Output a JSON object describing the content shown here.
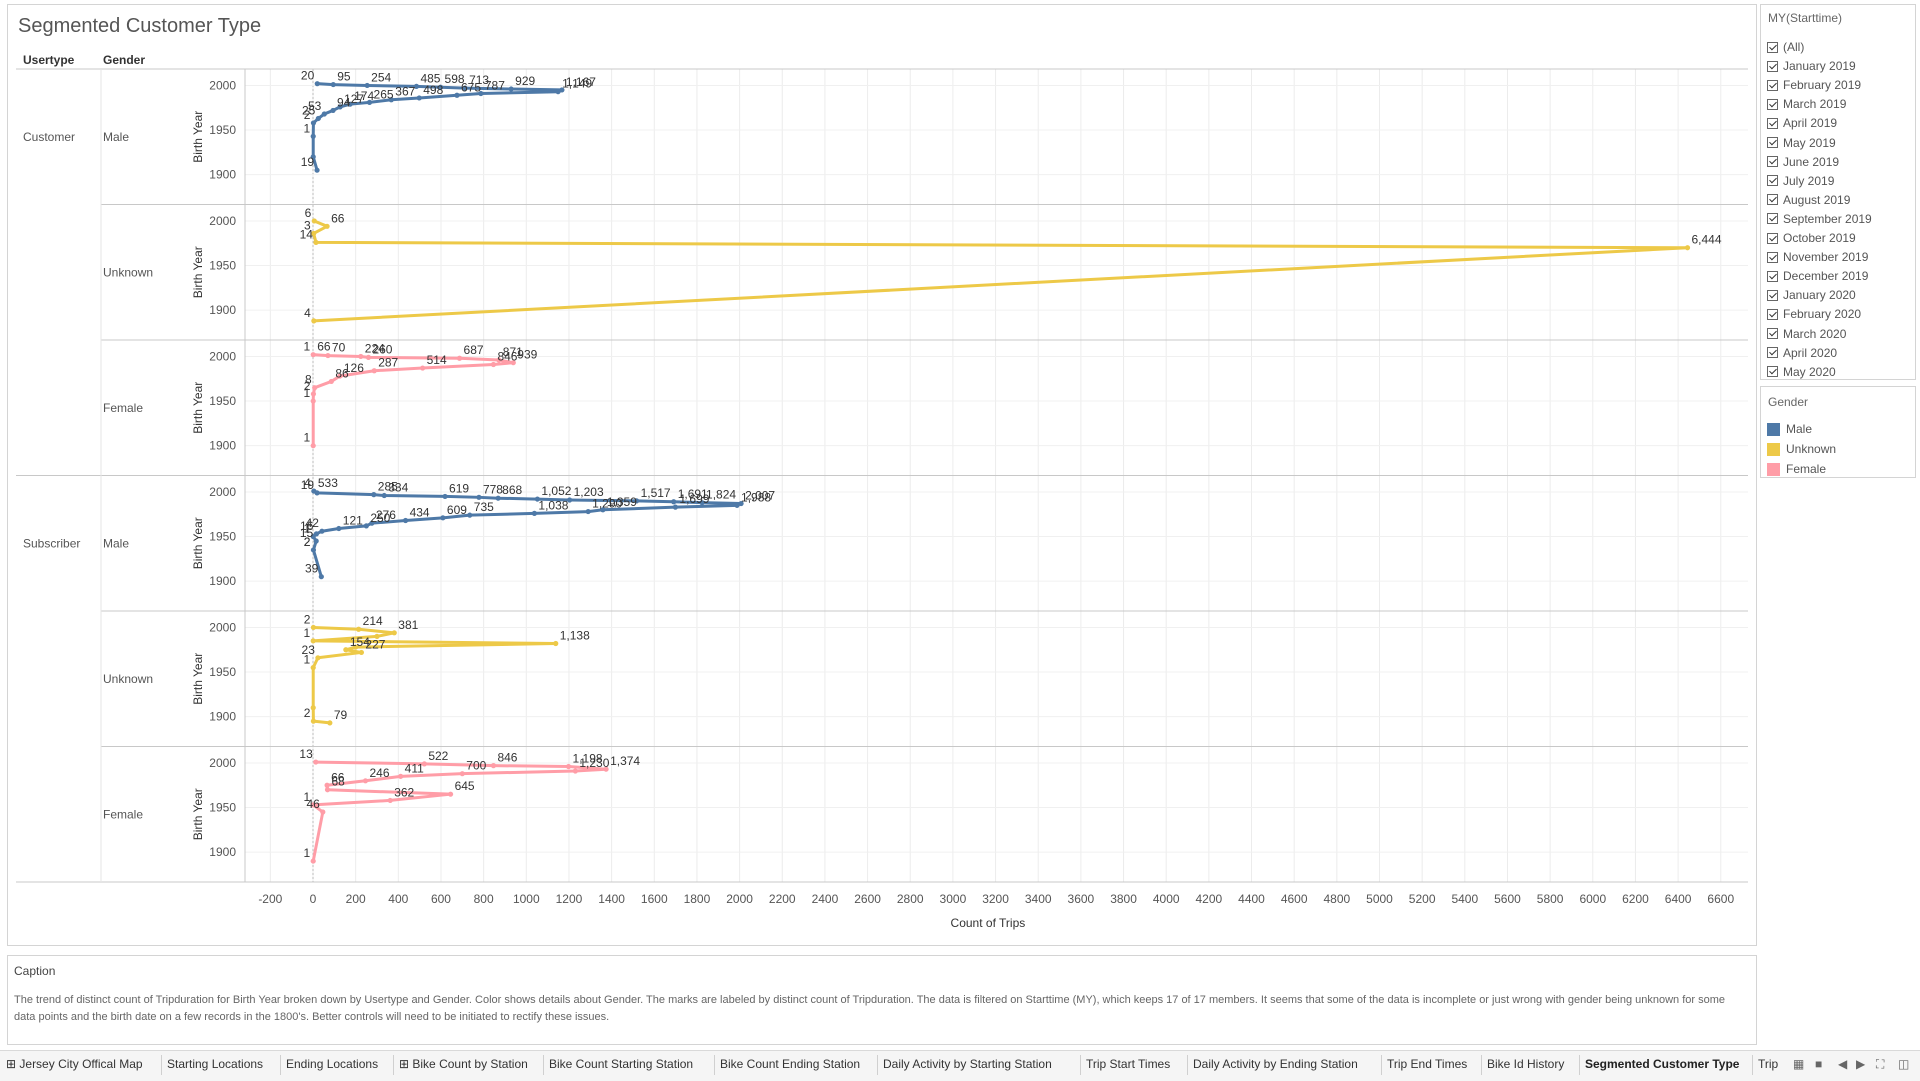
{
  "sheet": {
    "title": "Segmented Customer Type",
    "col_headers": {
      "usertype": "Usertype",
      "gender": "Gender"
    }
  },
  "colors": {
    "Male": "#4e79a7",
    "Unknown": "#edc948",
    "Female": "#ff9da7"
  },
  "chart_data": {
    "type": "line",
    "title": "Segmented Customer Type",
    "xlabel": "Count of Trips",
    "ylabel": "Birth Year",
    "xlim": [
      -200,
      6600
    ],
    "x_ticks": [
      "-200",
      "0",
      "200",
      "400",
      "600",
      "800",
      "1000",
      "1200",
      "1400",
      "1600",
      "1800",
      "2000",
      "2200",
      "2400",
      "2600",
      "2800",
      "3000",
      "3200",
      "3400",
      "3600",
      "3800",
      "4000",
      "4200",
      "4400",
      "4600",
      "4800",
      "5000",
      "5200",
      "5400",
      "5600",
      "5800",
      "6000",
      "6200",
      "6400",
      "6600"
    ],
    "y_ticks": [
      "2000",
      "1950",
      "1900"
    ],
    "grid": true,
    "panels": [
      {
        "usertype": "Customer",
        "gender": "Male",
        "points": [
          [
            20,
            2002
          ],
          [
            95,
            2001
          ],
          [
            254,
            2000
          ],
          [
            485,
            1999
          ],
          [
            598,
            1998
          ],
          [
            713,
            1997
          ],
          [
            929,
            1996
          ],
          [
            1167,
            1995
          ],
          [
            1149,
            1993
          ],
          [
            787,
            1991
          ],
          [
            675,
            1989
          ],
          [
            498,
            1986
          ],
          [
            367,
            1984
          ],
          [
            265,
            1981
          ],
          [
            174,
            1979
          ],
          [
            127,
            1976
          ],
          [
            94,
            1972
          ],
          [
            53,
            1968
          ],
          [
            25,
            1963
          ],
          [
            2,
            1958
          ],
          [
            1,
            1943
          ],
          [
            1,
            1920
          ],
          [
            19,
            1905
          ]
        ],
        "labels": [
          [
            20,
            "20"
          ],
          [
            95,
            "95"
          ],
          [
            254,
            "254"
          ],
          [
            485,
            "485"
          ],
          [
            598,
            "598"
          ],
          [
            713,
            "713"
          ],
          [
            929,
            "929"
          ],
          [
            1167,
            "1,167"
          ],
          [
            1149,
            "1,149"
          ],
          [
            787,
            "787"
          ],
          [
            675,
            "675"
          ],
          [
            498,
            "498"
          ],
          [
            367,
            "367"
          ],
          [
            265,
            "265"
          ],
          [
            174,
            "174"
          ],
          [
            127,
            "127"
          ],
          [
            94,
            "94"
          ],
          [
            53,
            "53"
          ],
          [
            25,
            "25"
          ],
          [
            2,
            "2"
          ],
          [
            1,
            "1"
          ],
          [
            19,
            "19"
          ]
        ]
      },
      {
        "usertype": "",
        "gender": "Unknown",
        "points": [
          [
            6,
            2000
          ],
          [
            66,
            1994
          ],
          [
            3,
            1986
          ],
          [
            14,
            1976
          ],
          [
            6444,
            1970
          ],
          [
            4,
            1888
          ]
        ],
        "labels": [
          [
            6,
            "6"
          ],
          [
            66,
            "66"
          ],
          [
            3,
            "3"
          ],
          [
            14,
            "14"
          ],
          [
            6444,
            "6,444"
          ],
          [
            4,
            "4"
          ]
        ]
      },
      {
        "usertype": "",
        "gender": "Female",
        "points": [
          [
            1,
            2002
          ],
          [
            70,
            2001
          ],
          [
            224,
            2000
          ],
          [
            260,
            1999
          ],
          [
            687,
            1998
          ],
          [
            871,
            1996
          ],
          [
            939,
            1993
          ],
          [
            846,
            1991
          ],
          [
            514,
            1987
          ],
          [
            287,
            1984
          ],
          [
            126,
            1978
          ],
          [
            86,
            1972
          ],
          [
            8,
            1965
          ],
          [
            2,
            1958
          ],
          [
            1,
            1950
          ],
          [
            1,
            1900
          ]
        ],
        "labels": [
          [
            1,
            "1"
          ],
          [
            70,
            "70"
          ],
          [
            224,
            "224"
          ],
          [
            260,
            "260"
          ],
          [
            687,
            "687"
          ],
          [
            871,
            "871"
          ],
          [
            939,
            "939"
          ],
          [
            846,
            "846"
          ],
          [
            514,
            "514"
          ],
          [
            287,
            "287"
          ],
          [
            126,
            "126"
          ],
          [
            86,
            "86"
          ],
          [
            8,
            "8"
          ],
          [
            66,
            "66"
          ],
          [
            2,
            "2"
          ],
          [
            1,
            "1"
          ],
          [
            1,
            "1"
          ]
        ]
      },
      {
        "usertype": "Subscriber",
        "gender": "Male",
        "points": [
          [
            4,
            2001
          ],
          [
            19,
            1999
          ],
          [
            285,
            1997
          ],
          [
            334,
            1996
          ],
          [
            619,
            1995
          ],
          [
            778,
            1994
          ],
          [
            868,
            1993
          ],
          [
            1052,
            1992
          ],
          [
            1203,
            1991
          ],
          [
            1517,
            1990
          ],
          [
            1691,
            1989
          ],
          [
            1824,
            1988
          ],
          [
            2007,
            1987
          ],
          [
            1988,
            1985
          ],
          [
            1699,
            1983
          ],
          [
            1359,
            1980
          ],
          [
            1290,
            1978
          ],
          [
            1038,
            1976
          ],
          [
            735,
            1974
          ],
          [
            609,
            1971
          ],
          [
            434,
            1968
          ],
          [
            276,
            1965
          ],
          [
            250,
            1962
          ],
          [
            121,
            1959
          ],
          [
            42,
            1956
          ],
          [
            16,
            1953
          ],
          [
            1,
            1950
          ],
          [
            15,
            1945
          ],
          [
            2,
            1935
          ],
          [
            39,
            1905
          ]
        ],
        "labels": [
          [
            4,
            "4"
          ],
          [
            2,
            "2"
          ],
          [
            19,
            "19"
          ],
          [
            334,
            "334"
          ],
          [
            285,
            "285"
          ],
          [
            1203,
            "1,203"
          ],
          [
            619,
            "619"
          ],
          [
            778,
            "778"
          ],
          [
            868,
            "868"
          ],
          [
            1052,
            "1,052"
          ],
          [
            1517,
            "1,517"
          ],
          [
            1691,
            "1,691"
          ],
          [
            1824,
            "1,824"
          ],
          [
            2007,
            "2,007"
          ],
          [
            1988,
            "1,988"
          ],
          [
            1699,
            "1,699"
          ],
          [
            1359,
            "1,359"
          ],
          [
            533,
            "533"
          ],
          [
            250,
            "250"
          ],
          [
            16,
            "16"
          ],
          [
            42,
            "42"
          ],
          [
            1038,
            "1,038"
          ],
          [
            1290,
            "1,290"
          ],
          [
            121,
            "121"
          ],
          [
            276,
            "276"
          ],
          [
            434,
            "434"
          ],
          [
            609,
            "609"
          ],
          [
            735,
            "735"
          ],
          [
            1,
            "1"
          ],
          [
            15,
            "15"
          ],
          [
            2,
            "2"
          ],
          [
            39,
            "39"
          ]
        ]
      },
      {
        "usertype": "",
        "gender": "Unknown",
        "points": [
          [
            2,
            2000
          ],
          [
            214,
            1998
          ],
          [
            381,
            1994
          ],
          [
            300,
            1990
          ],
          [
            1,
            1985
          ],
          [
            1138,
            1982
          ],
          [
            200,
            1978
          ],
          [
            154,
            1975
          ],
          [
            227,
            1972
          ],
          [
            23,
            1966
          ],
          [
            1,
            1955
          ],
          [
            1,
            1910
          ],
          [
            2,
            1895
          ],
          [
            79,
            1893
          ]
        ],
        "labels": [
          [
            214,
            "214"
          ],
          [
            2,
            "2"
          ],
          [
            381,
            "381"
          ],
          [
            1,
            "1"
          ],
          [
            1138,
            "1,138"
          ],
          [
            154,
            "154"
          ],
          [
            227,
            "227"
          ],
          [
            23,
            "23"
          ],
          [
            1,
            "1"
          ],
          [
            2,
            "2"
          ],
          [
            79,
            "79"
          ]
        ]
      },
      {
        "usertype": "",
        "gender": "Female",
        "points": [
          [
            13,
            2001
          ],
          [
            522,
            1999
          ],
          [
            846,
            1997
          ],
          [
            1198,
            1996
          ],
          [
            1374,
            1993
          ],
          [
            1230,
            1991
          ],
          [
            700,
            1988
          ],
          [
            411,
            1985
          ],
          [
            246,
            1980
          ],
          [
            66,
            1975
          ],
          [
            68,
            1970
          ],
          [
            645,
            1965
          ],
          [
            362,
            1958
          ],
          [
            1,
            1953
          ],
          [
            46,
            1945
          ],
          [
            1,
            1890
          ]
        ],
        "labels": [
          [
            13,
            "13"
          ],
          [
            522,
            "522"
          ],
          [
            846,
            "846"
          ],
          [
            1198,
            "1,198"
          ],
          [
            1374,
            "1,374"
          ],
          [
            1230,
            "1,230"
          ],
          [
            66,
            "66"
          ],
          [
            246,
            "246"
          ],
          [
            411,
            "411"
          ],
          [
            68,
            "68"
          ],
          [
            700,
            "700"
          ],
          [
            1,
            "1"
          ],
          [
            362,
            "362"
          ],
          [
            645,
            "645"
          ],
          [
            46,
            "46"
          ],
          [
            1,
            "1"
          ]
        ]
      }
    ]
  },
  "filter": {
    "title": "MY(Starttime)",
    "items": [
      "(All)",
      "January 2019",
      "February 2019",
      "March 2019",
      "April 2019",
      "May 2019",
      "June 2019",
      "July 2019",
      "August 2019",
      "September 2019",
      "October 2019",
      "November 2019",
      "December 2019",
      "January 2020",
      "February 2020",
      "March 2020",
      "April 2020",
      "May 2020"
    ]
  },
  "legend": {
    "title": "Gender",
    "items": [
      "Male",
      "Unknown",
      "Female"
    ]
  },
  "caption": {
    "title": "Caption",
    "text": "The trend of distinct count of Tripduration for Birth Year broken down by Usertype and Gender.  Color shows details about Gender.  The marks are labeled by distinct count of Tripduration. The data is filtered on Starttime (MY), which keeps 17 of 17 members. It seems that some of the data is incomplete or just wrong with gender being unknown for some data points and the birth date on a few records in the 1800's. Better controls will need to be initiated to rectify these issues."
  },
  "tabs": [
    {
      "label": "Jersey City Offical Map",
      "icon": "grid-icon"
    },
    {
      "label": "Starting Locations"
    },
    {
      "label": "Ending Locations"
    },
    {
      "label": "Bike Count by Station",
      "icon": "grid-icon"
    },
    {
      "label": "Bike Count Starting Station"
    },
    {
      "label": "Bike Count Ending Station"
    },
    {
      "label": "Daily Activity by Starting Station"
    },
    {
      "label": "Trip Start Times"
    },
    {
      "label": "Daily Activity by Ending Station"
    },
    {
      "label": "Trip End Times"
    },
    {
      "label": "Bike Id History"
    },
    {
      "label": "Segmented Customer Type",
      "active": true
    },
    {
      "label": "Trip"
    }
  ]
}
